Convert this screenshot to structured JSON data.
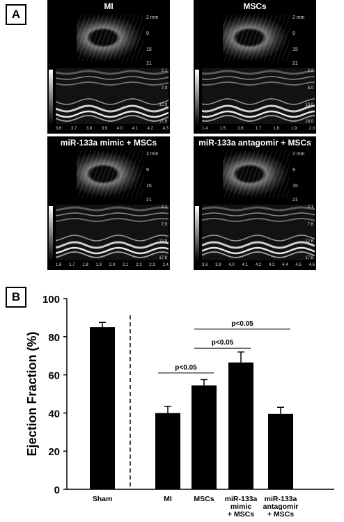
{
  "panel_a": {
    "label": "A",
    "panels": [
      {
        "title": "MI",
        "bscale": [
          "2 mm",
          "9",
          "15",
          "21"
        ],
        "mscale": [
          "2.1",
          "7.9",
          "12.9",
          "17.9"
        ],
        "times": [
          "3.6",
          "3.7",
          "3.8",
          "3.9",
          "4.0",
          "4.1",
          "4.2",
          "4.3"
        ]
      },
      {
        "title": "MSCs",
        "bscale": [
          "2 mm",
          "9",
          "15",
          "21"
        ],
        "mscale": [
          "2.2",
          "8.0",
          "13.0",
          "18.0"
        ],
        "times": [
          "1.4",
          "1.5",
          "1.6",
          "1.7",
          "1.8",
          "1.9",
          "2.0"
        ]
      },
      {
        "title": "miR-133a mimic + MSCs",
        "bscale": [
          "2 mm",
          "9",
          "15",
          "21"
        ],
        "mscale": [
          "2.1",
          "7.9",
          "12.9",
          "17.9"
        ],
        "times": [
          "1.6",
          "1.7",
          "1.8",
          "1.9",
          "2.0",
          "2.1",
          "2.2",
          "2.3",
          "2.4"
        ]
      },
      {
        "title": "miR-133a antagomir + MSCs",
        "bscale": [
          "2 mm",
          "9",
          "15",
          "21"
        ],
        "mscale": [
          "2.1",
          "7.6",
          "12.6",
          "17.6"
        ],
        "times": [
          "3.8",
          "3.9",
          "4.0",
          "4.1",
          "4.2",
          "4.3",
          "4.4",
          "4.5",
          "4.6"
        ]
      }
    ]
  },
  "panel_b": {
    "label": "B"
  },
  "chart_data": {
    "type": "bar",
    "ylabel": "Ejection Fraction (%)",
    "ylim": [
      0,
      100
    ],
    "yticks": [
      0,
      20,
      40,
      60,
      80,
      100
    ],
    "categories": [
      [
        "Sham"
      ],
      [
        "MI"
      ],
      [
        "MSCs"
      ],
      [
        "miR-133a",
        "mimic",
        "+ MSCs"
      ],
      [
        "miR-133a",
        "antagomir",
        "+ MSCs"
      ]
    ],
    "values": [
      85,
      40,
      54.5,
      66.5,
      39.5
    ],
    "errors": [
      2.5,
      3.5,
      3,
      5.5,
      3.5
    ],
    "bar_color": "#000000",
    "separator_after_index": 0,
    "significance": [
      {
        "from": 1,
        "to": 2,
        "label": "p<0.05",
        "y": 61
      },
      {
        "from": 2,
        "to": 3,
        "label": "p<0.05",
        "y": 74
      },
      {
        "from": 2,
        "to": 4,
        "label": "p<0.05",
        "y": 84
      }
    ]
  }
}
